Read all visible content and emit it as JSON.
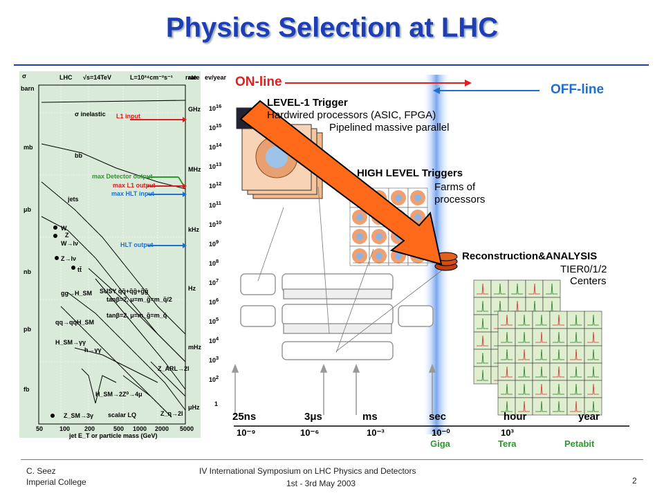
{
  "title": "Physics Selection at LHC",
  "footer": {
    "author": "C. Seez",
    "institution": "Imperial College",
    "event": "IV International Symposium on LHC Physics and Detectors",
    "dates": "1st - 3rd May 2003",
    "page": "2"
  },
  "left_chart": {
    "top_labels": {
      "sigma": "σ",
      "lhc": "LHC",
      "energy": "√s=14TeV",
      "lumi": "L=10³⁴cm⁻²s⁻¹",
      "rate": "rate",
      "evyear": "ev/year"
    },
    "cross_section_units": [
      "barn",
      "mb",
      "μb",
      "nb",
      "pb",
      "fb"
    ],
    "rate_units": [
      "GHz",
      "MHz",
      "kHz",
      "Hz",
      "mHz",
      "μHz"
    ],
    "process_labels": [
      "σ inelastic",
      "bb̄",
      "jets",
      "W",
      "Z",
      "W→lν",
      "Z→lν",
      "tt̄",
      "gg→H_SM",
      "qq→qqH_SM",
      "H_SM→γγ",
      "h→γγ",
      "SUSY q̃q̃+q̃g̃+g̃g̃",
      "tanβ=2, μ=m_g̃=m_q̃/2",
      "tanβ=2, μ=m_g̃=m_q̃",
      "Z_ARL→2l",
      "H_SM→2Z⁰→4μ",
      "Z_SM→3γ",
      "scalar LQ",
      "Z_η→2l"
    ],
    "arrow_labels": [
      {
        "text": "L1 input",
        "color": "#d62020"
      },
      {
        "text": "max Detector output",
        "color": "#2a9a2a"
      },
      {
        "text": "max L1 output",
        "color": "#d62020"
      },
      {
        "text": "max HLT input",
        "color": "#1f6fd0"
      },
      {
        "text": "HLT output",
        "color": "#1f6fd0"
      }
    ],
    "x_ticks": [
      "50",
      "100",
      "200",
      "500",
      "1000",
      "2000",
      "5000"
    ],
    "x_label": "jet E_T or particle mass (GeV)",
    "ev_year_exponents": [
      "16",
      "15",
      "14",
      "13",
      "12",
      "11",
      "10",
      "9",
      "8",
      "7",
      "6",
      "5",
      "4",
      "3",
      "2",
      "1"
    ]
  },
  "right_diagram": {
    "online": "ON-line",
    "offline": "OFF-line",
    "level1_title": "LEVEL-1 Trigger",
    "level1_line1": "Hardwired processors (ASIC, FPGA)",
    "level1_line2": "Pipelined massive parallel",
    "hlt_title": "HIGH LEVEL Triggers",
    "hlt_line1": "Farms of",
    "hlt_line2": "processors",
    "reco_title": "Reconstruction&ANALYSIS",
    "reco_line1": "TIER0/1/2",
    "reco_line2": "Centers",
    "timeline": [
      "25ns",
      "3μs",
      "ms",
      "sec",
      "hour",
      "year"
    ],
    "powers": [
      "10⁻⁹",
      "10⁻⁶",
      "10⁻³",
      "10⁻⁰",
      "10³"
    ],
    "scale_labels": [
      {
        "text": "Giga",
        "color": "#2a9a2a"
      },
      {
        "text": "Tera",
        "color": "#2a9a2a"
      },
      {
        "text": "Petabit",
        "color": "#2a9a2a"
      }
    ],
    "colors": {
      "online": "#e02020",
      "offline": "#1f6fd0",
      "arrow": "#ff6a1a"
    }
  }
}
